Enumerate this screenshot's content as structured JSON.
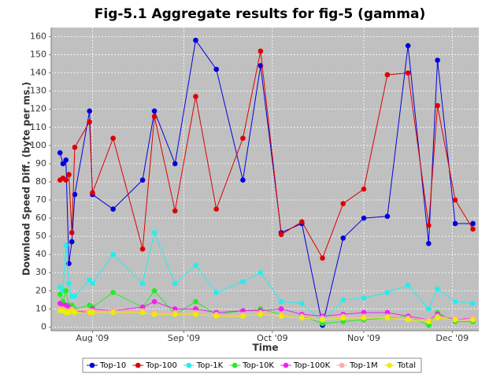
{
  "chart_data": {
    "type": "line",
    "title": "Fig-5.1 Aggregate results for fig-5 (gamma)",
    "x_label": "Time",
    "y_label": "Download Speed Diff. (byte per ms.)",
    "x": [
      202,
      203,
      204,
      205,
      206,
      207,
      212,
      213,
      220,
      230,
      234,
      241,
      248,
      255,
      264,
      270,
      277,
      284,
      291,
      298,
      305,
      313,
      320,
      327,
      330,
      336,
      342
    ],
    "xlim": [
      199,
      344
    ],
    "xticks": [
      {
        "value": 213,
        "label": "Aug '09"
      },
      {
        "value": 244,
        "label": "Sep '09"
      },
      {
        "value": 274,
        "label": "Oct '09"
      },
      {
        "value": 305,
        "label": "Nov '09"
      },
      {
        "value": 335,
        "label": "Dec '09"
      }
    ],
    "ylim": [
      -2,
      165
    ],
    "yticks": [
      0,
      10,
      20,
      30,
      40,
      50,
      60,
      70,
      80,
      90,
      100,
      110,
      120,
      130,
      140,
      150,
      160
    ],
    "grid": true,
    "legend": "bottom",
    "series": [
      {
        "name": "Top-10",
        "color": "#0000dd",
        "values": [
          96,
          90,
          92,
          35,
          47,
          73,
          119,
          73,
          65,
          81,
          119,
          90,
          158,
          142,
          81,
          144,
          52,
          57,
          1,
          49,
          60,
          61,
          155,
          46,
          147,
          57,
          57
        ]
      },
      {
        "name": "Top-100",
        "color": "#dd0000",
        "values": [
          81,
          82,
          81,
          84,
          52,
          99,
          113,
          74,
          104,
          43,
          116,
          64,
          127,
          65,
          104,
          152,
          51,
          58,
          38,
          68,
          76,
          139,
          140,
          56,
          122,
          70,
          54
        ]
      },
      {
        "name": "Top-1K",
        "color": "#22eeee",
        "values": [
          22,
          20,
          45,
          24,
          17,
          17,
          26,
          24,
          40,
          24,
          52,
          24,
          34,
          19,
          25,
          30,
          14,
          13,
          3,
          15,
          16,
          19,
          23,
          10,
          21,
          14,
          13
        ]
      },
      {
        "name": "Top-10K",
        "color": "#22ee22",
        "values": [
          18,
          14,
          20,
          12,
          12,
          10,
          12,
          11,
          19,
          11,
          20,
          7,
          14,
          7,
          9,
          10,
          7,
          6,
          2,
          3,
          4,
          5,
          6,
          1,
          8,
          3,
          3
        ]
      },
      {
        "name": "Top-100K",
        "color": "#ee22ee",
        "values": [
          13,
          12,
          12,
          11,
          9,
          9,
          8,
          10,
          9,
          11,
          14,
          10,
          10,
          8,
          9,
          9,
          10,
          7,
          6,
          7,
          8,
          8,
          6,
          4,
          7,
          4,
          5
        ]
      },
      {
        "name": "Top-1M",
        "color": "#ffaaaa",
        "values": [
          10,
          10,
          9,
          9,
          10,
          9,
          9,
          9,
          9,
          9,
          8,
          8,
          8,
          7,
          7,
          8,
          7,
          6,
          5,
          6,
          6,
          6,
          5,
          4,
          6,
          5,
          5
        ]
      },
      {
        "name": "Total",
        "color": "#eeee00",
        "values": [
          9,
          9,
          8,
          8,
          9,
          8,
          8,
          8,
          8,
          8,
          7,
          7,
          7,
          6,
          6,
          7,
          6,
          5,
          4,
          5,
          5,
          5,
          4,
          3,
          5,
          4,
          4
        ]
      }
    ]
  }
}
